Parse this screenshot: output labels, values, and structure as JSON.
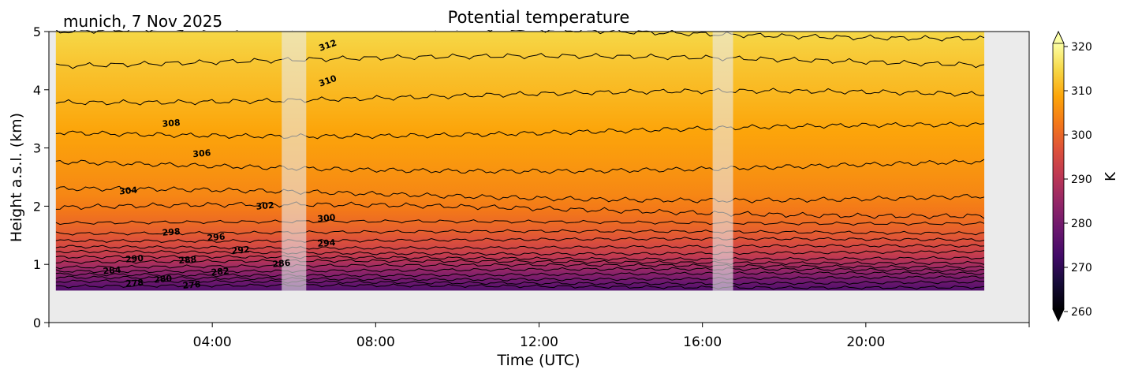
{
  "chart_data": {
    "type": "heatmap",
    "title": "Potential temperature",
    "location_label": "munich, 7 Nov 2025",
    "xlabel": "Time (UTC)",
    "ylabel": "Height a.s.l. (km)",
    "xlim_hours": [
      0,
      24
    ],
    "ylim_km": [
      0,
      5
    ],
    "x_ticks": [
      {
        "hour": 4,
        "label": "04:00"
      },
      {
        "hour": 8,
        "label": "08:00"
      },
      {
        "hour": 12,
        "label": "12:00"
      },
      {
        "hour": 16,
        "label": "16:00"
      },
      {
        "hour": 20,
        "label": "20:00"
      }
    ],
    "y_ticks": [
      {
        "value": 0,
        "label": "0"
      },
      {
        "value": 1,
        "label": "1"
      },
      {
        "value": 2,
        "label": "2"
      },
      {
        "value": 3,
        "label": "3"
      },
      {
        "value": 4,
        "label": "4"
      },
      {
        "value": 5,
        "label": "5"
      }
    ],
    "data_extent": {
      "x_start_hour": 0.17,
      "x_end_hour": 22.9,
      "y_bottom_km": 0.55,
      "y_top_km": 5.0
    },
    "gaps": [
      {
        "x_start_hour": 5.7,
        "x_end_hour": 6.3
      },
      {
        "x_start_hour": 16.25,
        "x_end_hour": 16.75
      }
    ],
    "background_color": "#ebebeb",
    "colormap": "inferno",
    "colorbar": {
      "label": "K",
      "vmin": 260,
      "vmax": 320,
      "ticks": [
        {
          "value": 260,
          "label": "260"
        },
        {
          "value": 270,
          "label": "270"
        },
        {
          "value": 280,
          "label": "280"
        },
        {
          "value": 290,
          "label": "290"
        },
        {
          "value": 300,
          "label": "300"
        },
        {
          "value": 310,
          "label": "310"
        },
        {
          "value": 320,
          "label": "320"
        }
      ],
      "extend": "both"
    },
    "contours": [
      {
        "level": 276,
        "base_height_km": 0.62
      },
      {
        "level": 278,
        "base_height_km": 0.69
      },
      {
        "level": 280,
        "base_height_km": 0.76
      },
      {
        "level": 282,
        "base_height_km": 0.83
      },
      {
        "level": 284,
        "base_height_km": 0.9
      },
      {
        "level": 286,
        "base_height_km": 0.97
      },
      {
        "level": 288,
        "base_height_km": 1.04
      },
      {
        "level": 290,
        "base_height_km": 1.11
      },
      {
        "level": 292,
        "base_height_km": 1.2
      },
      {
        "level": 294,
        "base_height_km": 1.3
      },
      {
        "level": 296,
        "base_height_km": 1.42
      },
      {
        "level": 298,
        "base_height_km": 1.55
      },
      {
        "level": 300,
        "base_height_km": 1.72
      },
      {
        "level": 302,
        "base_height_km": 1.93
      },
      {
        "level": 304,
        "base_height_km": 2.2
      },
      {
        "level": 306,
        "base_height_km": 2.7
      },
      {
        "level": 308,
        "base_height_km": 3.3
      },
      {
        "level": 310,
        "base_height_km": 3.88
      },
      {
        "level": 312,
        "base_height_km": 4.48
      },
      {
        "level": 314,
        "base_height_km": 4.98
      }
    ],
    "contour_labels": [
      {
        "text": "276",
        "hour": 3.5,
        "km": 0.65
      },
      {
        "text": "278",
        "hour": 2.1,
        "km": 0.68
      },
      {
        "text": "280",
        "hour": 2.8,
        "km": 0.75
      },
      {
        "text": "282",
        "hour": 4.2,
        "km": 0.88
      },
      {
        "text": "284",
        "hour": 1.55,
        "km": 0.9
      },
      {
        "text": "286",
        "hour": 5.7,
        "km": 1.02
      },
      {
        "text": "288",
        "hour": 3.4,
        "km": 1.08
      },
      {
        "text": "290",
        "hour": 2.1,
        "km": 1.1
      },
      {
        "text": "292",
        "hour": 4.7,
        "km": 1.25
      },
      {
        "text": "294",
        "hour": 6.8,
        "km": 1.37
      },
      {
        "text": "296",
        "hour": 4.1,
        "km": 1.47
      },
      {
        "text": "298",
        "hour": 3.0,
        "km": 1.56
      },
      {
        "text": "300",
        "hour": 6.8,
        "km": 1.8
      },
      {
        "text": "302",
        "hour": 5.3,
        "km": 2.01
      },
      {
        "text": "304",
        "hour": 1.95,
        "km": 2.27
      },
      {
        "text": "306",
        "hour": 3.75,
        "km": 2.91
      },
      {
        "text": "308",
        "hour": 3.0,
        "km": 3.43
      },
      {
        "text": "310",
        "hour": 6.85,
        "km": 4.16
      },
      {
        "text": "312",
        "hour": 6.85,
        "km": 4.77
      }
    ]
  }
}
